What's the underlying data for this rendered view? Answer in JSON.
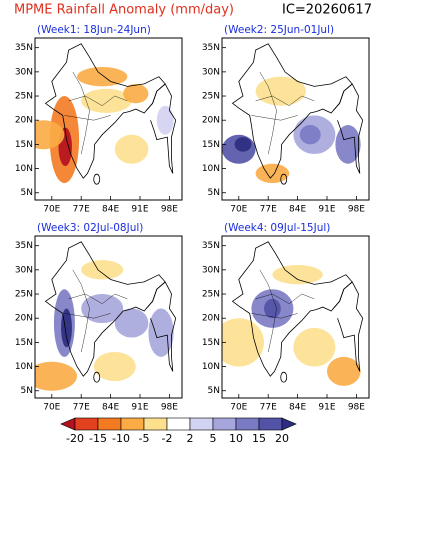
{
  "header": {
    "title": "MPME Rainfall Anomaly (mm/day)",
    "ic": "IC=20260617"
  },
  "axes": {
    "lat_labels": [
      "35N",
      "30N",
      "25N",
      "20N",
      "15N",
      "10N",
      "5N"
    ],
    "lon_labels": [
      "70E",
      "77E",
      "84E",
      "91E",
      "98E"
    ]
  },
  "panels": [
    {
      "title": "(Week1: 18Jun-24Jun)"
    },
    {
      "title": "(Week2: 25Jun-01Jul)"
    },
    {
      "title": "(Week3: 02Jul-08Jul)"
    },
    {
      "title": "(Week4: 09Jul-15Jul)"
    }
  ],
  "colorbar": {
    "levels": [
      -20,
      -15,
      -10,
      -5,
      -2,
      2,
      5,
      10,
      15,
      20
    ],
    "colors": [
      "#b4101e",
      "#e2401e",
      "#f47a22",
      "#f9ac45",
      "#fde08e",
      "#ffffff",
      "#d2d2f2",
      "#a6a6dc",
      "#7a7ac4",
      "#5252a6",
      "#2c2c80"
    ]
  }
}
